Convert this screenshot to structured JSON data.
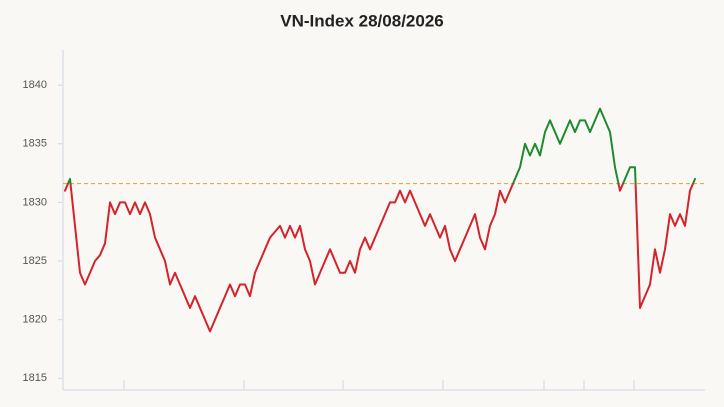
{
  "chart_data": {
    "type": "line",
    "title": "VN-Index 28/08/2026",
    "values": [
      1831,
      1832,
      1828,
      1824,
      1823,
      1824,
      1825,
      1825.5,
      1826.5,
      1830,
      1829,
      1830,
      1830,
      1829,
      1830,
      1829,
      1830,
      1829,
      1827,
      1826,
      1825,
      1823,
      1824,
      1823,
      1822,
      1821,
      1822,
      1821,
      1820,
      1819,
      1820,
      1821,
      1822,
      1823,
      1822,
      1823,
      1823,
      1822,
      1824,
      1825,
      1826,
      1827,
      1827.5,
      1828,
      1827,
      1828,
      1827,
      1828,
      1826,
      1825,
      1823,
      1824,
      1825,
      1826,
      1825,
      1824,
      1824,
      1825,
      1824,
      1826,
      1827,
      1826,
      1827,
      1828,
      1829,
      1830,
      1830,
      1831,
      1830,
      1831,
      1830,
      1829,
      1828,
      1829,
      1828,
      1827,
      1828,
      1826,
      1825,
      1826,
      1827,
      1828,
      1829,
      1827,
      1826,
      1828,
      1829,
      1831,
      1830,
      1831,
      1832,
      1833,
      1835,
      1834,
      1835,
      1834,
      1836,
      1837,
      1836,
      1835,
      1836,
      1837,
      1836,
      1837,
      1837,
      1836,
      1837,
      1838,
      1837,
      1836,
      1833,
      1831,
      1832,
      1833,
      1833,
      1821,
      1822,
      1823,
      1826,
      1824,
      1826,
      1829,
      1828,
      1829,
      1828,
      1831,
      1832
    ],
    "reference": 1831.6,
    "up_color": "#1f8a2f",
    "down_color": "#d3232c",
    "reference_color": "#e0a030",
    "ylim": [
      1814,
      1843
    ],
    "yticks": [
      1815,
      1820,
      1825,
      1830,
      1835,
      1840
    ]
  }
}
